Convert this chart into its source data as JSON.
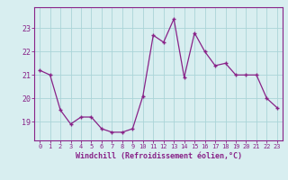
{
  "x": [
    0,
    1,
    2,
    3,
    4,
    5,
    6,
    7,
    8,
    9,
    10,
    11,
    12,
    13,
    14,
    15,
    16,
    17,
    18,
    19,
    20,
    21,
    22,
    23
  ],
  "y": [
    21.2,
    21.0,
    19.5,
    18.9,
    19.2,
    19.2,
    18.7,
    18.55,
    18.55,
    18.7,
    20.1,
    22.7,
    22.4,
    23.4,
    20.9,
    22.8,
    22.0,
    21.4,
    21.5,
    21.0,
    21.0,
    21.0,
    20.0,
    19.6
  ],
  "line_color": "#882288",
  "marker": "+",
  "bg_color": "#d8eef0",
  "grid_color": "#aad4d8",
  "xlabel": "Windchill (Refroidissement éolien,°C)",
  "ylim": [
    18.2,
    23.9
  ],
  "yticks": [
    19,
    20,
    21,
    22,
    23
  ],
  "xticks": [
    0,
    1,
    2,
    3,
    4,
    5,
    6,
    7,
    8,
    9,
    10,
    11,
    12,
    13,
    14,
    15,
    16,
    17,
    18,
    19,
    20,
    21,
    22,
    23
  ],
  "axis_color": "#882288",
  "font_color": "#882288"
}
